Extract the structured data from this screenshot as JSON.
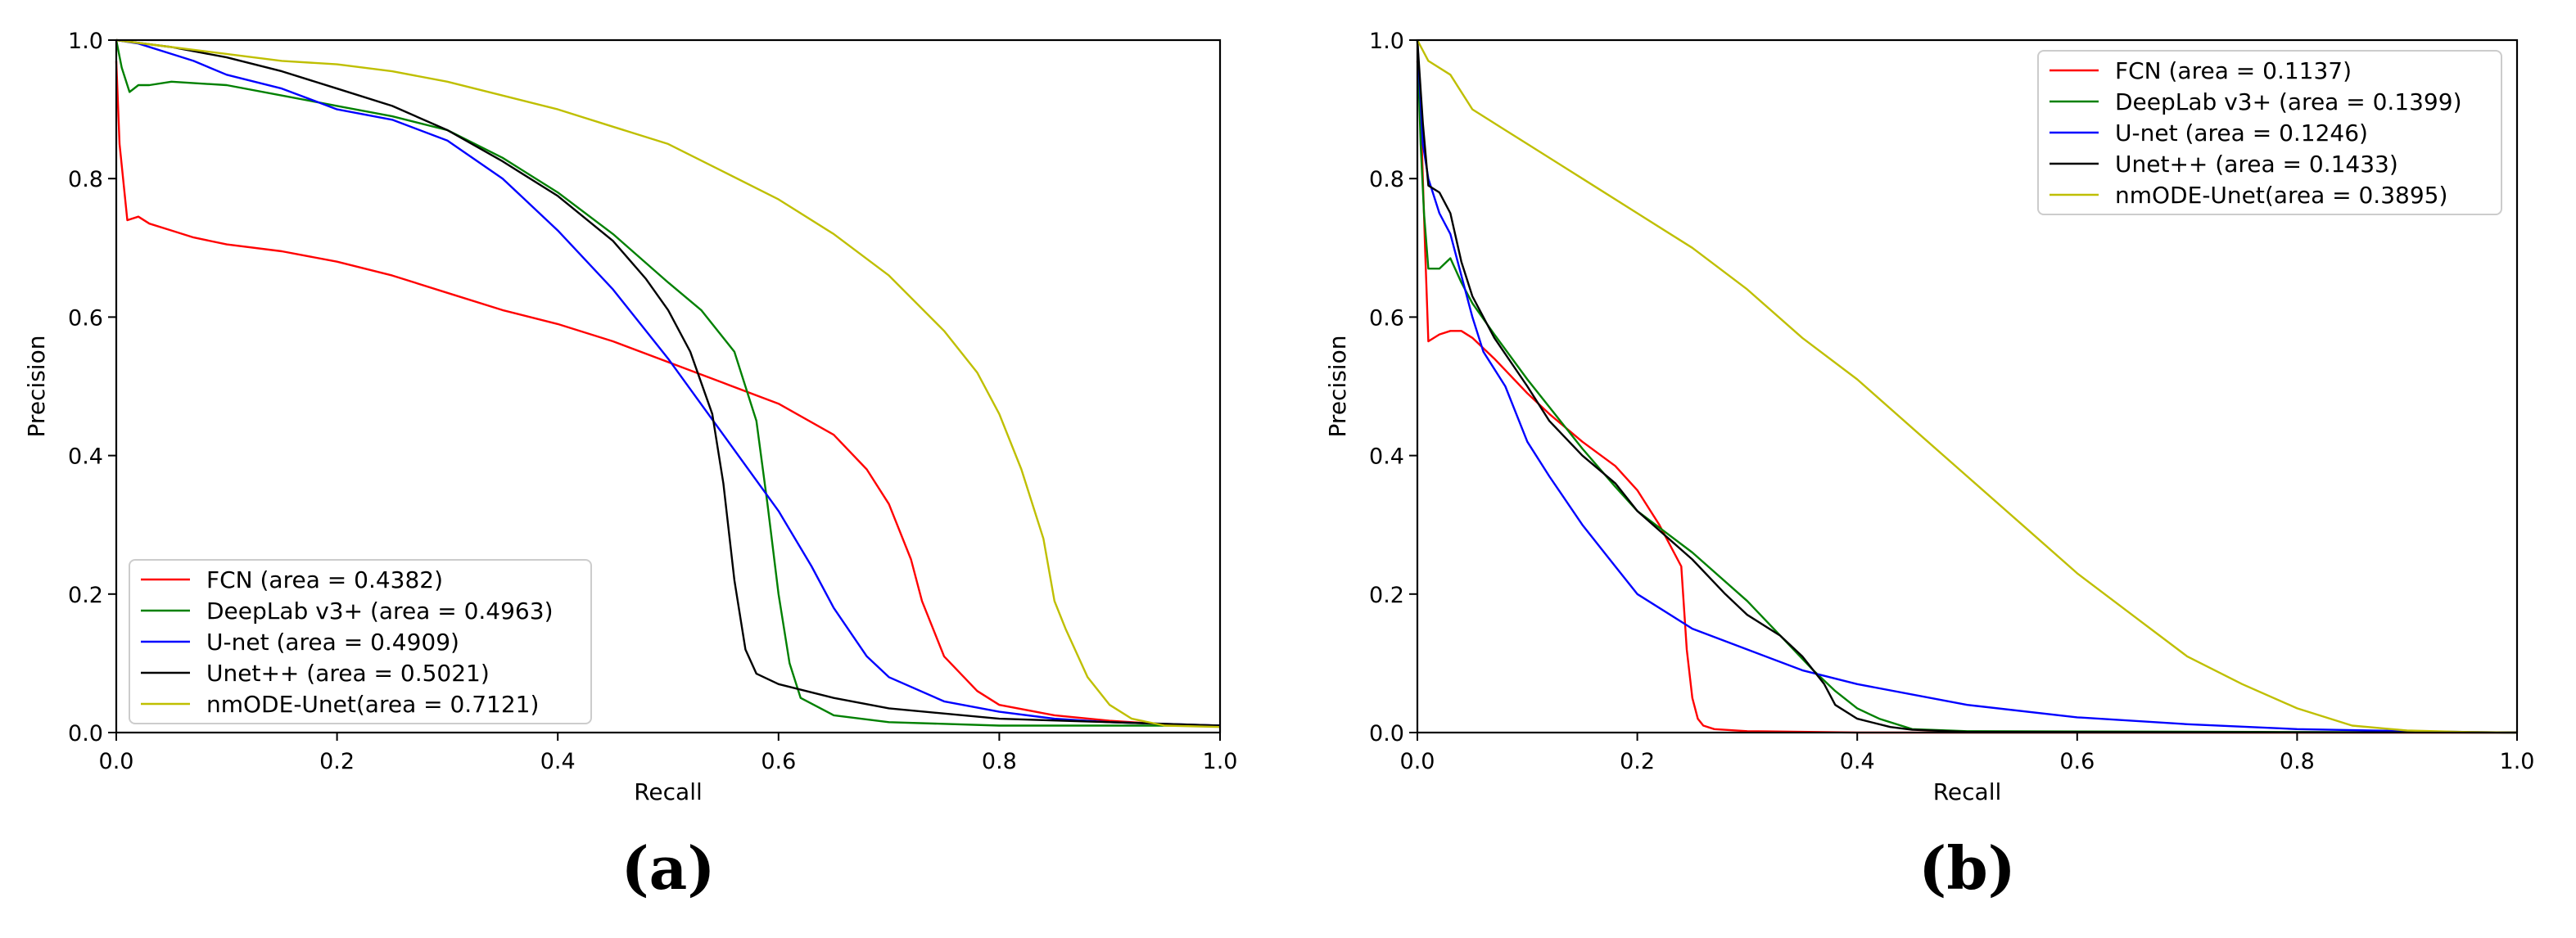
{
  "chart_data": [
    {
      "type": "line",
      "panel_label": "(a)",
      "xlabel": "Recall",
      "ylabel": "Precision",
      "xlim": [
        0.0,
        1.0
      ],
      "ylim": [
        0.0,
        1.0
      ],
      "xticks": [
        "0.0",
        "0.2",
        "0.4",
        "0.6",
        "0.8",
        "1.0"
      ],
      "yticks": [
        "0.0",
        "0.2",
        "0.4",
        "0.6",
        "0.8",
        "1.0"
      ],
      "grid": false,
      "legend_position": "lower-left",
      "series": [
        {
          "name": "FCN (area = 0.4382)",
          "color": "#ff0000",
          "x": [
            0.0,
            0.003,
            0.01,
            0.02,
            0.03,
            0.05,
            0.07,
            0.1,
            0.15,
            0.2,
            0.25,
            0.3,
            0.35,
            0.4,
            0.45,
            0.5,
            0.55,
            0.6,
            0.65,
            0.68,
            0.7,
            0.72,
            0.73,
            0.75,
            0.78,
            0.8,
            0.85,
            0.9,
            0.95,
            1.0
          ],
          "y": [
            0.97,
            0.85,
            0.74,
            0.745,
            0.735,
            0.725,
            0.715,
            0.705,
            0.695,
            0.68,
            0.66,
            0.635,
            0.61,
            0.59,
            0.565,
            0.535,
            0.505,
            0.475,
            0.43,
            0.38,
            0.33,
            0.25,
            0.19,
            0.11,
            0.06,
            0.04,
            0.025,
            0.017,
            0.012,
            0.01
          ]
        },
        {
          "name": "DeepLab v3+ (area = 0.4963)",
          "color": "#008000",
          "x": [
            0.0,
            0.005,
            0.012,
            0.02,
            0.03,
            0.05,
            0.1,
            0.15,
            0.2,
            0.25,
            0.3,
            0.35,
            0.4,
            0.45,
            0.5,
            0.53,
            0.56,
            0.58,
            0.59,
            0.6,
            0.61,
            0.62,
            0.65,
            0.7,
            0.8,
            0.9,
            1.0
          ],
          "y": [
            1.0,
            0.96,
            0.925,
            0.935,
            0.935,
            0.94,
            0.935,
            0.92,
            0.905,
            0.89,
            0.87,
            0.83,
            0.78,
            0.72,
            0.65,
            0.61,
            0.55,
            0.45,
            0.33,
            0.2,
            0.1,
            0.05,
            0.025,
            0.015,
            0.01,
            0.01,
            0.01
          ]
        },
        {
          "name": "U-net (area = 0.4909)",
          "color": "#0000ff",
          "x": [
            0.0,
            0.02,
            0.05,
            0.07,
            0.1,
            0.15,
            0.2,
            0.25,
            0.3,
            0.35,
            0.4,
            0.45,
            0.5,
            0.55,
            0.6,
            0.63,
            0.65,
            0.68,
            0.7,
            0.75,
            0.8,
            0.85,
            0.9,
            1.0
          ],
          "y": [
            1.0,
            0.995,
            0.98,
            0.97,
            0.95,
            0.93,
            0.9,
            0.885,
            0.855,
            0.8,
            0.725,
            0.64,
            0.54,
            0.43,
            0.32,
            0.24,
            0.18,
            0.11,
            0.08,
            0.045,
            0.03,
            0.02,
            0.015,
            0.01
          ]
        },
        {
          "name": "Unet++ (area = 0.5021)",
          "color": "#000000",
          "x": [
            0.0,
            0.05,
            0.1,
            0.15,
            0.2,
            0.25,
            0.3,
            0.35,
            0.4,
            0.45,
            0.48,
            0.5,
            0.52,
            0.54,
            0.55,
            0.56,
            0.57,
            0.58,
            0.6,
            0.65,
            0.7,
            0.8,
            0.9,
            1.0
          ],
          "y": [
            1.0,
            0.99,
            0.975,
            0.955,
            0.93,
            0.905,
            0.87,
            0.825,
            0.775,
            0.71,
            0.655,
            0.61,
            0.55,
            0.46,
            0.36,
            0.22,
            0.12,
            0.085,
            0.07,
            0.05,
            0.035,
            0.02,
            0.015,
            0.01
          ]
        },
        {
          "name": "nmODE-Unet(area = 0.7121)",
          "color": "#bfbf00",
          "x": [
            0.0,
            0.05,
            0.1,
            0.15,
            0.2,
            0.25,
            0.3,
            0.35,
            0.4,
            0.45,
            0.5,
            0.55,
            0.6,
            0.65,
            0.7,
            0.75,
            0.78,
            0.8,
            0.82,
            0.84,
            0.85,
            0.86,
            0.88,
            0.9,
            0.92,
            0.95,
            1.0
          ],
          "y": [
            1.0,
            0.99,
            0.98,
            0.97,
            0.965,
            0.955,
            0.94,
            0.92,
            0.9,
            0.875,
            0.85,
            0.81,
            0.77,
            0.72,
            0.66,
            0.58,
            0.52,
            0.46,
            0.38,
            0.28,
            0.19,
            0.15,
            0.08,
            0.04,
            0.02,
            0.01,
            0.008
          ]
        }
      ]
    },
    {
      "type": "line",
      "panel_label": "(b)",
      "xlabel": "Recall",
      "ylabel": "Precision",
      "xlim": [
        0.0,
        1.0
      ],
      "ylim": [
        0.0,
        1.0
      ],
      "xticks": [
        "0.0",
        "0.2",
        "0.4",
        "0.6",
        "0.8",
        "1.0"
      ],
      "yticks": [
        "0.0",
        "0.2",
        "0.4",
        "0.6",
        "0.8",
        "1.0"
      ],
      "grid": false,
      "legend_position": "upper-right",
      "series": [
        {
          "name": "FCN (area = 0.1137)",
          "color": "#ff0000",
          "x": [
            0.0,
            0.003,
            0.007,
            0.01,
            0.02,
            0.03,
            0.04,
            0.05,
            0.07,
            0.1,
            0.12,
            0.15,
            0.18,
            0.2,
            0.22,
            0.24,
            0.245,
            0.25,
            0.255,
            0.26,
            0.27,
            0.3,
            0.4,
            0.5,
            1.0
          ],
          "y": [
            0.97,
            0.9,
            0.7,
            0.565,
            0.575,
            0.58,
            0.58,
            0.57,
            0.54,
            0.49,
            0.46,
            0.42,
            0.385,
            0.35,
            0.3,
            0.24,
            0.12,
            0.05,
            0.02,
            0.01,
            0.005,
            0.002,
            0.0,
            0.0,
            0.0
          ]
        },
        {
          "name": "DeepLab v3+ (area = 0.1399)",
          "color": "#008000",
          "x": [
            0.0,
            0.003,
            0.006,
            0.01,
            0.02,
            0.03,
            0.04,
            0.05,
            0.07,
            0.1,
            0.12,
            0.15,
            0.18,
            0.2,
            0.25,
            0.3,
            0.33,
            0.36,
            0.38,
            0.4,
            0.42,
            0.45,
            0.5,
            1.0
          ],
          "y": [
            1.0,
            0.85,
            0.75,
            0.67,
            0.67,
            0.685,
            0.65,
            0.62,
            0.575,
            0.51,
            0.47,
            0.41,
            0.355,
            0.32,
            0.26,
            0.19,
            0.14,
            0.09,
            0.06,
            0.035,
            0.02,
            0.005,
            0.002,
            0.0
          ]
        },
        {
          "name": "U-net (area = 0.1246)",
          "color": "#0000ff",
          "x": [
            0.0,
            0.005,
            0.01,
            0.02,
            0.03,
            0.04,
            0.05,
            0.06,
            0.08,
            0.1,
            0.12,
            0.15,
            0.18,
            0.2,
            0.25,
            0.3,
            0.35,
            0.4,
            0.5,
            0.6,
            0.7,
            0.8,
            0.9,
            1.0
          ],
          "y": [
            1.0,
            0.85,
            0.8,
            0.75,
            0.72,
            0.66,
            0.6,
            0.55,
            0.5,
            0.42,
            0.37,
            0.3,
            0.24,
            0.2,
            0.15,
            0.12,
            0.09,
            0.07,
            0.04,
            0.022,
            0.012,
            0.005,
            0.002,
            0.0
          ]
        },
        {
          "name": "Unet++ (area = 0.1433)",
          "color": "#000000",
          "x": [
            0.0,
            0.005,
            0.01,
            0.02,
            0.03,
            0.04,
            0.05,
            0.07,
            0.1,
            0.12,
            0.15,
            0.18,
            0.2,
            0.25,
            0.28,
            0.3,
            0.33,
            0.35,
            0.37,
            0.38,
            0.4,
            0.43,
            0.45,
            0.5,
            1.0
          ],
          "y": [
            1.0,
            0.88,
            0.79,
            0.78,
            0.75,
            0.68,
            0.63,
            0.57,
            0.5,
            0.45,
            0.4,
            0.36,
            0.32,
            0.25,
            0.2,
            0.17,
            0.14,
            0.11,
            0.07,
            0.04,
            0.02,
            0.008,
            0.004,
            0.001,
            0.0
          ]
        },
        {
          "name": "nmODE-Unet(area = 0.3895)",
          "color": "#bfbf00",
          "x": [
            0.0,
            0.01,
            0.03,
            0.05,
            0.08,
            0.1,
            0.15,
            0.2,
            0.25,
            0.3,
            0.35,
            0.4,
            0.45,
            0.5,
            0.55,
            0.6,
            0.65,
            0.7,
            0.75,
            0.8,
            0.85,
            0.9,
            0.95,
            1.0
          ],
          "y": [
            1.0,
            0.97,
            0.95,
            0.9,
            0.87,
            0.85,
            0.8,
            0.75,
            0.7,
            0.64,
            0.57,
            0.51,
            0.44,
            0.37,
            0.3,
            0.23,
            0.17,
            0.11,
            0.07,
            0.035,
            0.01,
            0.003,
            0.001,
            0.0
          ]
        }
      ]
    }
  ]
}
